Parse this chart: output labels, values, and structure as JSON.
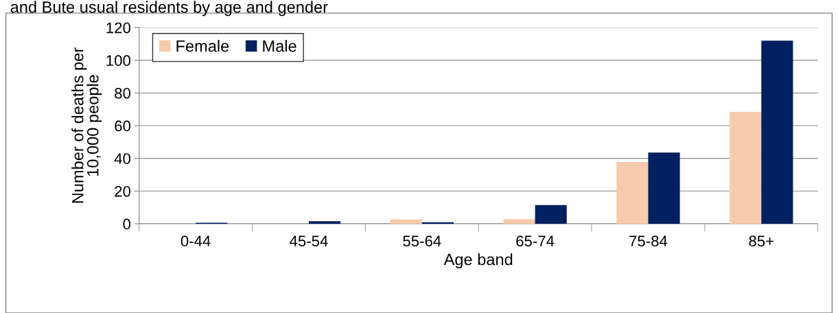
{
  "chart_data": {
    "type": "bar",
    "title": "and Bute usual residents by age and gender",
    "xlabel": "Age band",
    "ylabel": "Number of deaths per\n10,000 people",
    "categories": [
      "0-44",
      "45-54",
      "55-64",
      "65-74",
      "75-84",
      "85+"
    ],
    "series": [
      {
        "name": "Female",
        "color": "#f6caab",
        "values": [
          0,
          0,
          2.7,
          2.8,
          37.8,
          68.4
        ]
      },
      {
        "name": "Male",
        "color": "#002060",
        "values": [
          0.6,
          1.6,
          1.0,
          11.5,
          43.6,
          112
        ]
      }
    ],
    "ylim": [
      0,
      120
    ],
    "yticks": [
      0,
      20,
      40,
      60,
      80,
      100,
      120
    ],
    "grid": "y",
    "legend": "top left"
  }
}
